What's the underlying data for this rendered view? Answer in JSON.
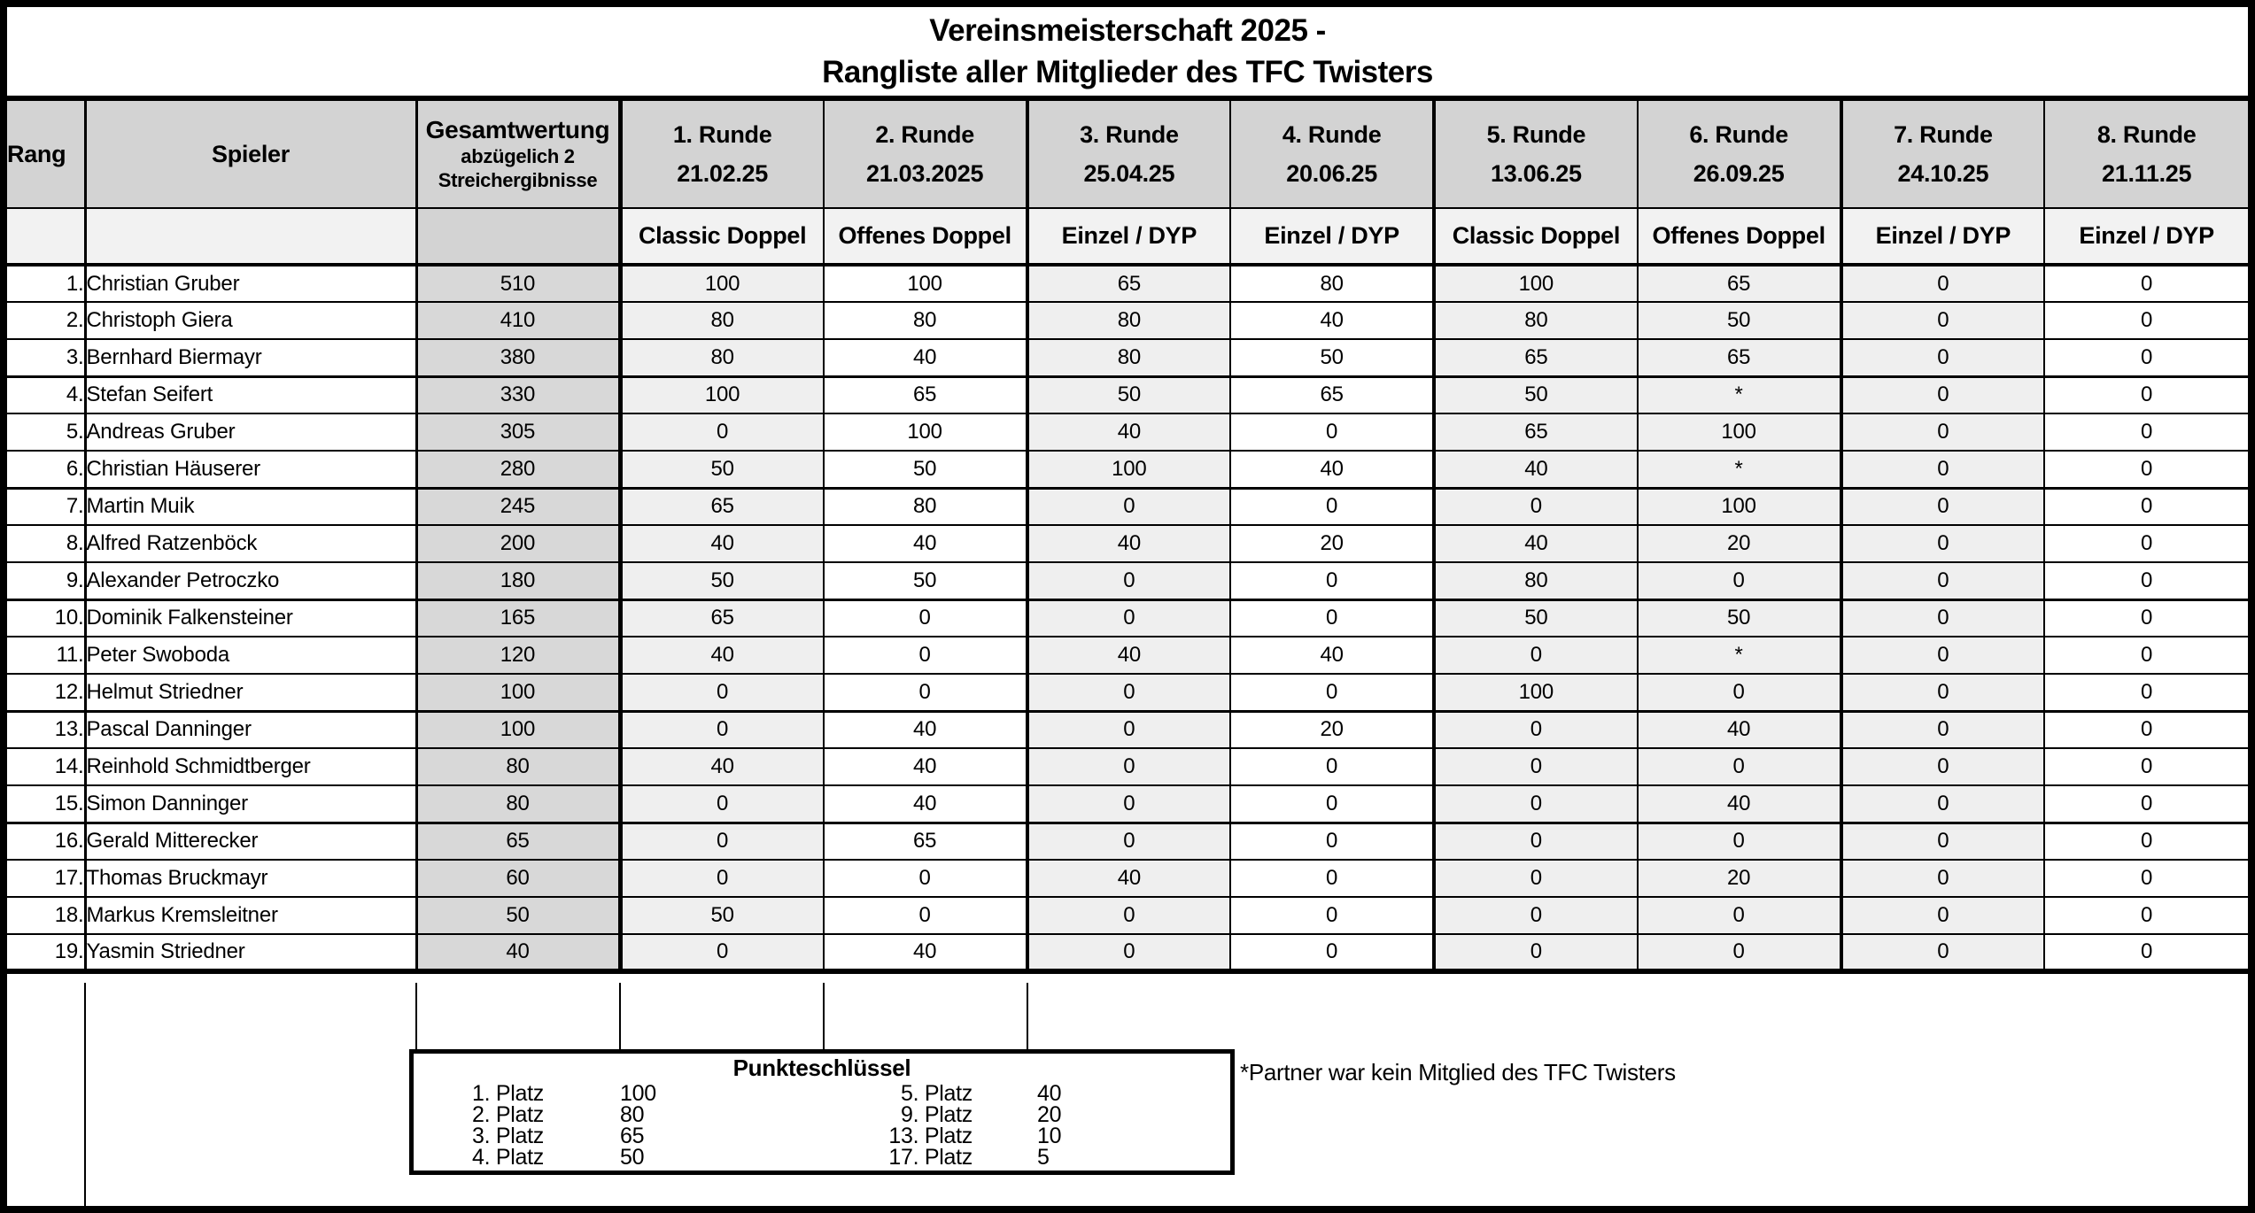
{
  "title": {
    "line1": "Vereinsmeisterschaft 2025 -",
    "line2": "Rangliste aller Mitglieder des TFC Twisters"
  },
  "columns": {
    "rang": "Rang",
    "spieler": "Spieler",
    "gesamt": {
      "line1": "Gesamtwertung",
      "line2": "abzügelich 2",
      "line3": "Streichergibnisse"
    },
    "rounds": [
      {
        "name": "1. Runde",
        "date": "21.02.25",
        "discipline": "Classic Doppel",
        "shaded": true
      },
      {
        "name": "2. Runde",
        "date": "21.03.2025",
        "discipline": "Offenes Doppel",
        "shaded": false
      },
      {
        "name": "3. Runde",
        "date": "25.04.25",
        "discipline": "Einzel / DYP",
        "shaded": true
      },
      {
        "name": "4. Runde",
        "date": "20.06.25",
        "discipline": "Einzel / DYP",
        "shaded": false
      },
      {
        "name": "5. Runde",
        "date": "13.06.25",
        "discipline": "Classic Doppel",
        "shaded": true
      },
      {
        "name": "6. Runde",
        "date": "26.09.25",
        "discipline": "Offenes Doppel",
        "shaded": true
      },
      {
        "name": "7. Runde",
        "date": "24.10.25",
        "discipline": "Einzel / DYP",
        "shaded": true
      },
      {
        "name": "8. Runde",
        "date": "21.11.25",
        "discipline": "Einzel / DYP",
        "shaded": false
      }
    ]
  },
  "players": [
    {
      "rank": "1.",
      "name": "Christian Gruber",
      "total": "510",
      "scores": [
        "100",
        "100",
        "65",
        "80",
        "100",
        "65",
        "0",
        "0"
      ]
    },
    {
      "rank": "2.",
      "name": "Christoph Giera",
      "total": "410",
      "scores": [
        "80",
        "80",
        "80",
        "40",
        "80",
        "50",
        "0",
        "0"
      ]
    },
    {
      "rank": "3.",
      "name": "Bernhard Biermayr",
      "total": "380",
      "scores": [
        "80",
        "40",
        "80",
        "50",
        "65",
        "65",
        "0",
        "0"
      ]
    },
    {
      "rank": "4.",
      "name": "Stefan Seifert",
      "total": "330",
      "scores": [
        "100",
        "65",
        "50",
        "65",
        "50",
        "*",
        "0",
        "0"
      ]
    },
    {
      "rank": "5.",
      "name": "Andreas Gruber",
      "total": "305",
      "scores": [
        "0",
        "100",
        "40",
        "0",
        "65",
        "100",
        "0",
        "0"
      ]
    },
    {
      "rank": "6.",
      "name": "Christian Häuserer",
      "total": "280",
      "scores": [
        "50",
        "50",
        "100",
        "40",
        "40",
        "*",
        "0",
        "0"
      ]
    },
    {
      "rank": "7.",
      "name": "Martin Muik",
      "total": "245",
      "scores": [
        "65",
        "80",
        "0",
        "0",
        "0",
        "100",
        "0",
        "0"
      ]
    },
    {
      "rank": "8.",
      "name": "Alfred Ratzenböck",
      "total": "200",
      "scores": [
        "40",
        "40",
        "40",
        "20",
        "40",
        "20",
        "0",
        "0"
      ]
    },
    {
      "rank": "9.",
      "name": "Alexander Petroczko",
      "total": "180",
      "scores": [
        "50",
        "50",
        "0",
        "0",
        "80",
        "0",
        "0",
        "0"
      ]
    },
    {
      "rank": "10.",
      "name": "Dominik Falkensteiner",
      "total": "165",
      "scores": [
        "65",
        "0",
        "0",
        "0",
        "50",
        "50",
        "0",
        "0"
      ]
    },
    {
      "rank": "11.",
      "name": "Peter Swoboda",
      "total": "120",
      "scores": [
        "40",
        "0",
        "40",
        "40",
        "0",
        "*",
        "0",
        "0"
      ]
    },
    {
      "rank": "12.",
      "name": "Helmut Striedner",
      "total": "100",
      "scores": [
        "0",
        "0",
        "0",
        "0",
        "100",
        "0",
        "0",
        "0"
      ]
    },
    {
      "rank": "13.",
      "name": "Pascal Danninger",
      "total": "100",
      "scores": [
        "0",
        "40",
        "0",
        "20",
        "0",
        "40",
        "0",
        "0"
      ]
    },
    {
      "rank": "14.",
      "name": "Reinhold Schmidtberger",
      "total": "80",
      "scores": [
        "40",
        "40",
        "0",
        "0",
        "0",
        "0",
        "0",
        "0"
      ]
    },
    {
      "rank": "15.",
      "name": "Simon Danninger",
      "total": "80",
      "scores": [
        "0",
        "40",
        "0",
        "0",
        "0",
        "40",
        "0",
        "0"
      ]
    },
    {
      "rank": "16.",
      "name": "Gerald Mitterecker",
      "total": "65",
      "scores": [
        "0",
        "65",
        "0",
        "0",
        "0",
        "0",
        "0",
        "0"
      ]
    },
    {
      "rank": "17.",
      "name": "Thomas Bruckmayr",
      "total": "60",
      "scores": [
        "0",
        "0",
        "40",
        "0",
        "0",
        "20",
        "0",
        "0"
      ]
    },
    {
      "rank": "18.",
      "name": "Markus Kremsleitner",
      "total": "50",
      "scores": [
        "50",
        "0",
        "0",
        "0",
        "0",
        "0",
        "0",
        "0"
      ]
    },
    {
      "rank": "19.",
      "name": "Yasmin Striedner",
      "total": "40",
      "scores": [
        "0",
        "40",
        "0",
        "0",
        "0",
        "0",
        "0",
        "0"
      ]
    }
  ],
  "group_breaks_after": [
    3,
    6,
    9,
    12,
    15
  ],
  "points_key": {
    "title": "Punkteschlüssel",
    "left": [
      {
        "place": "1. Platz",
        "points": "100"
      },
      {
        "place": "2. Platz",
        "points": "80"
      },
      {
        "place": "3. Platz",
        "points": "65"
      },
      {
        "place": "4. Platz",
        "points": "50"
      }
    ],
    "right": [
      {
        "place": "5. Platz",
        "points": "40"
      },
      {
        "place": "9. Platz",
        "points": "20"
      },
      {
        "place": "13. Platz",
        "points": "10"
      },
      {
        "place": "17. Platz",
        "points": "5"
      }
    ]
  },
  "footnote": "*Partner war kein Mitglied des TFC Twisters",
  "colors": {
    "border": "#000000",
    "header_bg": "#d3d3d3",
    "total_col_bg": "#d8d8d8",
    "subheader_bg": "#f2f2f2",
    "shaded_col_bg": "#efefef"
  }
}
